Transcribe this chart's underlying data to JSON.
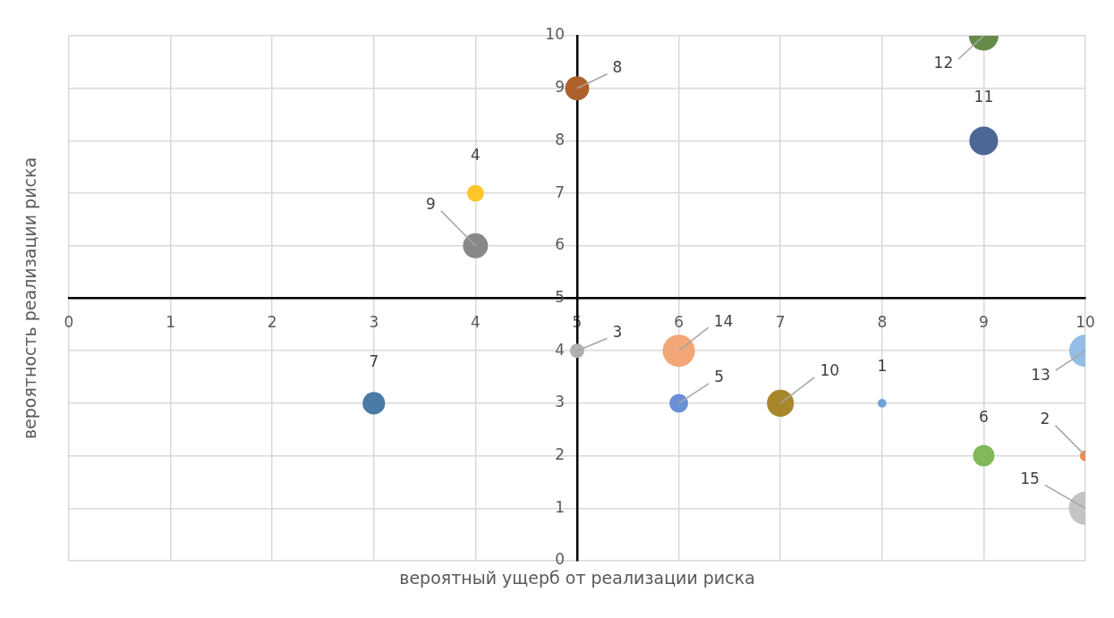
{
  "chart_data": {
    "type": "bubble",
    "xlabel": "вероятный ущерб от реализации риска",
    "ylabel": "вероятность реализации риска",
    "xlim": [
      0,
      10
    ],
    "xticks": [
      0,
      1,
      2,
      3,
      4,
      5,
      6,
      7,
      8,
      9,
      10
    ],
    "ylim": [
      0,
      10
    ],
    "yticks": [
      0,
      1,
      2,
      3,
      4,
      5,
      6,
      7,
      8,
      9,
      10
    ],
    "grid": true,
    "legend": false,
    "series": [
      {
        "name": "1",
        "color": "#6fa3dc",
        "x": [
          8
        ],
        "values": [
          3
        ],
        "sizes": [
          0.07
        ]
      },
      {
        "name": "2",
        "color": "#ef8a4a",
        "x": [
          10
        ],
        "values": [
          2
        ],
        "sizes": [
          0.11
        ]
      },
      {
        "name": "3",
        "color": "#b0b0b0",
        "x": [
          5
        ],
        "values": [
          4
        ],
        "sizes": [
          0.19
        ]
      },
      {
        "name": "4",
        "color": "#ffc62a",
        "x": [
          4
        ],
        "values": [
          7
        ],
        "sizes": [
          0.26
        ]
      },
      {
        "name": "5",
        "color": "#6b8fd6",
        "x": [
          6
        ],
        "values": [
          3
        ],
        "sizes": [
          0.32
        ]
      },
      {
        "name": "6",
        "color": "#80b85a",
        "x": [
          9
        ],
        "values": [
          2
        ],
        "sizes": [
          0.42
        ]
      },
      {
        "name": "7",
        "color": "#4a7aa6",
        "x": [
          3
        ],
        "values": [
          3
        ],
        "sizes": [
          0.46
        ]
      },
      {
        "name": "8",
        "color": "#b0602a",
        "x": [
          5
        ],
        "values": [
          9
        ],
        "sizes": [
          0.53
        ]
      },
      {
        "name": "9",
        "color": "#888888",
        "x": [
          4
        ],
        "values": [
          6
        ],
        "sizes": [
          0.57
        ]
      },
      {
        "name": "10",
        "color": "#a8862a",
        "x": [
          7
        ],
        "values": [
          3
        ],
        "sizes": [
          0.66
        ]
      },
      {
        "name": "11",
        "color": "#4d6794",
        "x": [
          9
        ],
        "values": [
          8
        ],
        "sizes": [
          0.75
        ]
      },
      {
        "name": "12",
        "color": "#658a4a",
        "x": [
          9
        ],
        "values": [
          10
        ],
        "sizes": [
          0.8
        ]
      },
      {
        "name": "13",
        "color": "#93bde6",
        "x": [
          10
        ],
        "values": [
          4
        ],
        "sizes": [
          0.95
        ]
      },
      {
        "name": "14",
        "color": "#f3a777",
        "x": [
          6
        ],
        "values": [
          4
        ],
        "sizes": [
          0.95
        ]
      },
      {
        "name": "15",
        "color": "#c4c4c4",
        "x": [
          10
        ],
        "values": [
          1
        ],
        "sizes": [
          1
        ]
      }
    ]
  }
}
